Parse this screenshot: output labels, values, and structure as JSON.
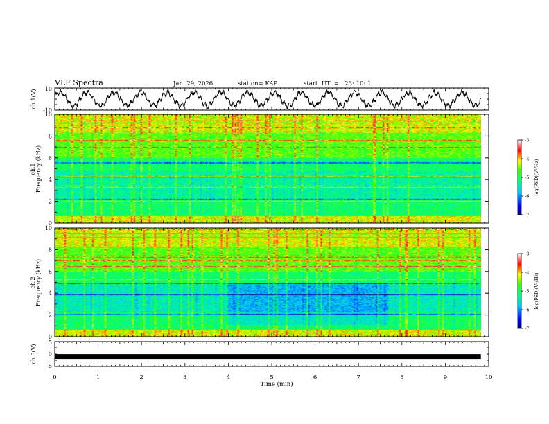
{
  "header": {
    "title": "VLF Spectra",
    "date": "Jan. 29, 2026",
    "station": "station= KAP",
    "start_ut": "start  UT  =   23: 10: 1"
  },
  "chart_data": [
    {
      "type": "line",
      "title": "VLF Spectra",
      "panel": "ch1-waveform",
      "ylabel": "ch.1(V)",
      "ylim": [
        -10,
        10
      ],
      "yticks": [
        "10",
        "-10"
      ],
      "xlim": [
        0,
        10
      ],
      "data_extent_min": [
        0,
        9.82
      ],
      "series": [
        {
          "name": "ch.1",
          "description": "oscillating trace between about -8 and 8 V, ~1.6 cycles per minute"
        }
      ]
    },
    {
      "type": "heatmap",
      "panel": "ch1-spectrogram",
      "ylabel": "ch.1\nFrequency (kHz)",
      "ylim": [
        0,
        10
      ],
      "yticks": [
        "0",
        "2",
        "4",
        "6",
        "8",
        "10"
      ],
      "xlim": [
        0,
        10
      ],
      "colorbar": {
        "label": "log(PSD)(V²/Hz)",
        "range": [
          -7,
          -3
        ],
        "ticks": [
          "-3",
          "-4",
          "-5",
          "-6",
          "-7"
        ]
      }
    },
    {
      "type": "heatmap",
      "panel": "ch2-spectrogram",
      "ylabel": "ch.2\nFrequency (kHz)",
      "ylim": [
        0,
        10
      ],
      "yticks": [
        "0",
        "2",
        "4",
        "6",
        "8",
        "10"
      ],
      "xlim": [
        0,
        10
      ],
      "colorbar": {
        "label": "log(PSD)(V²/Hz)",
        "range": [
          -7,
          -3
        ],
        "ticks": [
          "-3",
          "-4",
          "-5",
          "-6",
          "-7"
        ]
      }
    },
    {
      "type": "line",
      "panel": "ch3-waveform",
      "ylabel": "ch.3(V)",
      "ylim": [
        -5,
        5
      ],
      "yticks": [
        "5",
        "0",
        "-5"
      ],
      "xlim": [
        0,
        10
      ],
      "series": [
        {
          "name": "ch.3",
          "description": "dense signal near -1 V across 0 to 9.82 min"
        }
      ]
    }
  ],
  "x_axis": {
    "label": "Time (min)",
    "ticks": [
      "0",
      "1",
      "2",
      "3",
      "4",
      "5",
      "6",
      "7",
      "8",
      "9",
      "10"
    ]
  }
}
